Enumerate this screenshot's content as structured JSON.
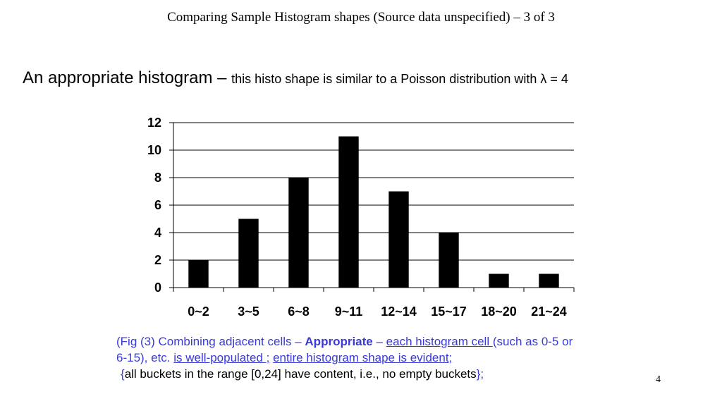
{
  "slide": {
    "title": "Comparing Sample Histogram shapes (Source data unspecified) – 3 of 3",
    "heading_main": "An appropriate histogram – ",
    "heading_sub": "this histo shape is similar to a Poisson distribution with λ = 4",
    "page_number": "4"
  },
  "caption": {
    "part1": "(Fig (3) Combining adjacent cells – ",
    "appropriate": "Appropriate",
    "dash": " – ",
    "each_cell": "each histogram cell ",
    "such_as": "(such as 0-5 or 6-15), etc. ",
    "well_populated": "is well-populated ;",
    "space": " ",
    "shape_evident": "entire histogram shape is evident;",
    "brace_open": "{",
    "buckets": "all buckets in the range [0,24] have content, i.e., no empty buckets",
    "brace_close": "};"
  },
  "chart_data": {
    "type": "bar",
    "categories": [
      "0~2",
      "3~5",
      "6~8",
      "9~11",
      "12~14",
      "15~17",
      "18~20",
      "21~24"
    ],
    "values": [
      2,
      5,
      8,
      11,
      7,
      4,
      1,
      1
    ],
    "ylim": [
      0,
      12
    ],
    "yticks": [
      0,
      2,
      4,
      6,
      8,
      10,
      12
    ],
    "grid": true,
    "bar_color": "#000000",
    "title": "",
    "xlabel": "",
    "ylabel": ""
  }
}
